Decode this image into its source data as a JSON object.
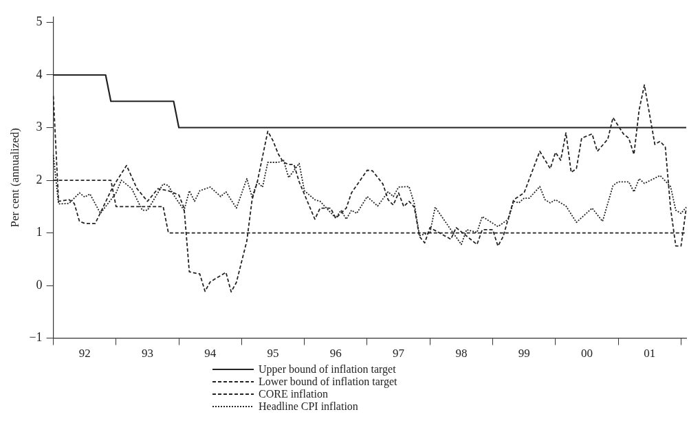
{
  "chart_data": {
    "type": "line",
    "ylabel": "Per cent (annualized)",
    "ylim": [
      -1,
      5.1
    ],
    "yticks": [
      -1,
      0,
      1,
      2,
      3,
      4,
      5
    ],
    "categories": [
      null,
      null,
      null,
      null,
      null,
      null,
      "92",
      null,
      null,
      null,
      null,
      null,
      null,
      null,
      null,
      null,
      null,
      null,
      "93",
      null,
      null,
      null,
      null,
      null,
      null,
      null,
      null,
      null,
      null,
      null,
      "94",
      null,
      null,
      null,
      null,
      null,
      null,
      null,
      null,
      null,
      null,
      null,
      "95",
      null,
      null,
      null,
      null,
      null,
      null,
      null,
      null,
      null,
      null,
      null,
      "96",
      null,
      null,
      null,
      null,
      null,
      null,
      null,
      null,
      null,
      null,
      null,
      "97",
      null,
      null,
      null,
      null,
      null,
      null,
      null,
      null,
      null,
      null,
      null,
      "98",
      null,
      null,
      null,
      null,
      null,
      null,
      null,
      null,
      null,
      null,
      null,
      "99",
      null,
      null,
      null,
      null,
      null,
      null,
      null,
      null,
      null,
      null,
      null,
      "00",
      null,
      null,
      null,
      null,
      null,
      null,
      null,
      null,
      null,
      null,
      null,
      "01",
      null,
      null,
      null,
      null,
      null,
      null,
      null
    ],
    "grid": false,
    "legend": "bottom",
    "marker": "none",
    "series": [
      {
        "name": "Upper bound of inflation target",
        "color": "#222222",
        "line_style": "solid",
        "values": [
          4,
          4,
          4,
          4,
          4,
          4,
          4,
          4,
          4,
          4,
          4,
          3.5,
          3.5,
          3.5,
          3.5,
          3.5,
          3.5,
          3.5,
          3.5,
          3.5,
          3.5,
          3.5,
          3.5,
          3.5,
          3,
          3,
          3,
          3,
          3,
          3,
          3,
          3,
          3,
          3,
          3,
          3,
          3,
          3,
          3,
          3,
          3,
          3,
          3,
          3,
          3,
          3,
          3,
          3,
          3,
          3,
          3,
          3,
          3,
          3,
          3,
          3,
          3,
          3,
          3,
          3,
          3,
          3,
          3,
          3,
          3,
          3,
          3,
          3,
          3,
          3,
          3,
          3,
          3,
          3,
          3,
          3,
          3,
          3,
          3,
          3,
          3,
          3,
          3,
          3,
          3,
          3,
          3,
          3,
          3,
          3,
          3,
          3,
          3,
          3,
          3,
          3,
          3,
          3,
          3,
          3,
          3,
          3,
          3,
          3,
          3,
          3,
          3,
          3,
          3,
          3,
          3,
          3,
          3,
          3,
          3,
          3,
          3,
          3,
          3,
          3,
          3,
          3
        ]
      },
      {
        "name": "Lower bound of inflation target",
        "color": "#222222",
        "line_style": "dashed",
        "values": [
          2,
          2,
          2,
          2,
          2,
          2,
          2,
          2,
          2,
          2,
          2,
          2,
          1.5,
          1.5,
          1.5,
          1.5,
          1.5,
          1.5,
          1.5,
          1.5,
          1.5,
          1.5,
          1,
          1,
          1,
          1,
          1,
          1,
          1,
          1,
          1,
          1,
          1,
          1,
          1,
          1,
          1,
          1,
          1,
          1,
          1,
          1,
          1,
          1,
          1,
          1,
          1,
          1,
          1,
          1,
          1,
          1,
          1,
          1,
          1,
          1,
          1,
          1,
          1,
          1,
          1,
          1,
          1,
          1,
          1,
          1,
          1,
          1,
          1,
          1,
          1,
          1,
          1,
          1,
          1,
          1,
          1,
          1,
          1,
          1,
          1,
          1,
          1,
          1,
          1,
          1,
          1,
          1,
          1,
          1,
          1,
          1,
          1,
          1,
          1,
          1,
          1,
          1,
          1,
          1,
          1,
          1,
          1,
          1,
          1,
          1,
          1,
          1,
          1,
          1,
          1,
          1,
          1,
          1,
          1,
          1,
          1,
          1,
          1,
          1,
          1,
          1
        ]
      },
      {
        "name": "CORE inflation",
        "color": "#222222",
        "line_style": "dashed",
        "values": [
          3.6,
          1.6,
          null,
          1.63,
          1.56,
          1.22,
          1.18,
          null,
          1.18,
          1.38,
          null,
          1.8,
          1.97,
          null,
          2.28,
          null,
          1.84,
          1.72,
          1.6,
          null,
          1.84,
          null,
          1.8,
          null,
          1.72,
          1.47,
          0.26,
          null,
          0.22,
          -0.11,
          0.07,
          null,
          null,
          0.25,
          -0.12,
          0.06,
          null,
          0.85,
          1.63,
          1.97,
          null,
          2.93,
          2.75,
          2.5,
          2.34,
          2.3,
          2.3,
          1.97,
          null,
          null,
          1.26,
          1.47,
          null,
          1.47,
          1.28,
          null,
          1.47,
          1.76,
          null,
          null,
          2.19,
          2.18,
          null,
          1.93,
          1.63,
          1.53,
          1.76,
          1.5,
          1.6,
          1.49,
          0.93,
          0.81,
          1.1,
          null,
          null,
          null,
          0.88,
          1.1,
          null,
          null,
          null,
          0.78,
          1.06,
          null,
          1.06,
          0.75,
          0.93,
          null,
          1.63,
          null,
          1.76,
          null,
          null,
          2.55,
          null,
          2.22,
          2.53,
          2.38,
          2.9,
          2.15,
          2.22,
          2.8,
          null,
          2.88,
          2.55,
          null,
          2.78,
          3.19,
          null,
          2.88,
          2.8,
          2.49,
          3.34,
          3.81,
          null,
          2.68,
          2.74,
          2.63,
          1.47,
          0.75,
          0.75,
          1.47
        ]
      },
      {
        "name": "Headline CPI inflation",
        "color": "#222222",
        "line_style": "dotted",
        "values": [
          2.48,
          1.55,
          null,
          1.56,
          null,
          1.76,
          1.68,
          1.74,
          null,
          1.37,
          null,
          null,
          1.76,
          2.0,
          null,
          1.84,
          null,
          1.43,
          1.43,
          null,
          null,
          1.93,
          1.9,
          1.72,
          null,
          1.43,
          1.8,
          1.6,
          1.8,
          null,
          1.87,
          null,
          1.69,
          1.78,
          null,
          1.47,
          null,
          2.03,
          1.68,
          1.97,
          1.87,
          2.34,
          null,
          2.34,
          2.38,
          2.05,
          null,
          2.32,
          1.8,
          null,
          1.63,
          1.6,
          null,
          null,
          1.28,
          1.43,
          1.26,
          1.43,
          1.37,
          null,
          1.69,
          null,
          1.51,
          null,
          1.78,
          1.69,
          1.87,
          null,
          1.88,
          1.56,
          0.95,
          null,
          1.0,
          1.49,
          null,
          null,
          1.06,
          null,
          0.78,
          1.06,
          null,
          1.01,
          1.31,
          null,
          null,
          1.12,
          null,
          1.26,
          1.6,
          1.57,
          1.66,
          1.66,
          null,
          1.88,
          1.63,
          1.57,
          1.63,
          null,
          1.51,
          null,
          1.2,
          null,
          null,
          1.47,
          null,
          1.22,
          null,
          1.9,
          1.97,
          null,
          1.97,
          1.78,
          2.03,
          1.94,
          null,
          null,
          2.09,
          null,
          1.88,
          1.43,
          1.37,
          1.49
        ]
      }
    ]
  }
}
